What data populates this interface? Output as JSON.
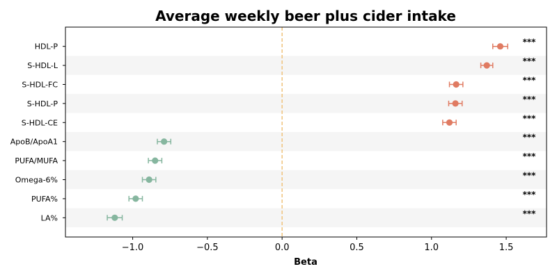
{
  "chart_data": {
    "type": "scatter",
    "title": "Average weekly beer plus cider intake",
    "xlabel": "Beta",
    "ylabel": "",
    "xlim": [
      -1.45,
      1.77
    ],
    "xticks": [
      -1.0,
      -0.5,
      0.0,
      0.5,
      1.0,
      1.5
    ],
    "xtick_labels": [
      "−1.0",
      "−0.5",
      "0.0",
      "0.5",
      "1.0",
      "1.5"
    ],
    "reference_line": 0.0,
    "grid": false,
    "categories": [
      "HDL-P",
      "S-HDL-L",
      "S-HDL-FC",
      "S-HDL-P",
      "S-HDL-CE",
      "ApoB/ApoA1",
      "PUFA/MUFA",
      "Omega-6%",
      "PUFA%",
      "LA%"
    ],
    "points": [
      {
        "label": "HDL-P",
        "beta": 1.46,
        "lower": 1.41,
        "upper": 1.51,
        "significance": "***"
      },
      {
        "label": "S-HDL-L",
        "beta": 1.37,
        "lower": 1.33,
        "upper": 1.41,
        "significance": "***"
      },
      {
        "label": "S-HDL-FC",
        "beta": 1.165,
        "lower": 1.12,
        "upper": 1.21,
        "significance": "***"
      },
      {
        "label": "S-HDL-P",
        "beta": 1.16,
        "lower": 1.115,
        "upper": 1.205,
        "significance": "***"
      },
      {
        "label": "S-HDL-CE",
        "beta": 1.12,
        "lower": 1.075,
        "upper": 1.165,
        "significance": "***"
      },
      {
        "label": "ApoB/ApoA1",
        "beta": -0.79,
        "lower": -0.835,
        "upper": -0.745,
        "significance": "***"
      },
      {
        "label": "PUFA/MUFA",
        "beta": -0.85,
        "lower": -0.895,
        "upper": -0.805,
        "significance": "***"
      },
      {
        "label": "Omega-6%",
        "beta": -0.89,
        "lower": -0.935,
        "upper": -0.845,
        "significance": "***"
      },
      {
        "label": "PUFA%",
        "beta": -0.98,
        "lower": -1.025,
        "upper": -0.935,
        "significance": "***"
      },
      {
        "label": "LA%",
        "beta": -1.12,
        "lower": -1.17,
        "upper": -1.07,
        "significance": "***"
      }
    ],
    "colors": {
      "positive": "#e07b62",
      "negative": "#86b69f",
      "reference_line": "#f0c27a",
      "band": "#f5f5f5"
    }
  }
}
